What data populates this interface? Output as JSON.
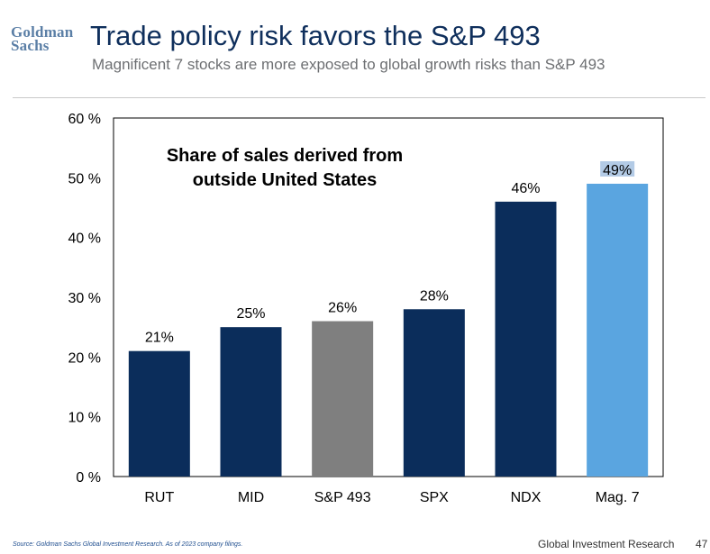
{
  "brand": {
    "line1": "Goldman",
    "line2": "Sachs"
  },
  "header": {
    "title": "Trade policy risk favors the S&P 493",
    "subtitle": "Magnificent 7 stocks are more exposed to global growth risks than S&P 493"
  },
  "chart_data": {
    "type": "bar",
    "title_line1": "Share of sales derived from",
    "title_line2": "outside United States",
    "categories": [
      "RUT",
      "MID",
      "S&P 493",
      "SPX",
      "NDX",
      "Mag. 7"
    ],
    "values": [
      21,
      25,
      26,
      28,
      46,
      49
    ],
    "value_labels": [
      "21%",
      "25%",
      "26%",
      "28%",
      "46%",
      "49%"
    ],
    "bar_colors": [
      "#0b2d5b",
      "#0b2d5b",
      "#7f7f7f",
      "#0b2d5b",
      "#0b2d5b",
      "#5aa5e0"
    ],
    "highlight_label_bg": "#b3cbe6",
    "y_ticks": [
      0,
      10,
      20,
      30,
      40,
      50,
      60
    ],
    "y_tick_labels": [
      "0 %",
      "10 %",
      "20 %",
      "30 %",
      "40 %",
      "50 %",
      "60 %"
    ],
    "ylim": [
      0,
      60
    ],
    "xlabel": "",
    "ylabel": "",
    "grid": false
  },
  "footer": {
    "source": "Source: Goldman Sachs Global Investment Research. As of 2023 company filings.",
    "division": "Global Investment Research",
    "page_number": "47"
  }
}
